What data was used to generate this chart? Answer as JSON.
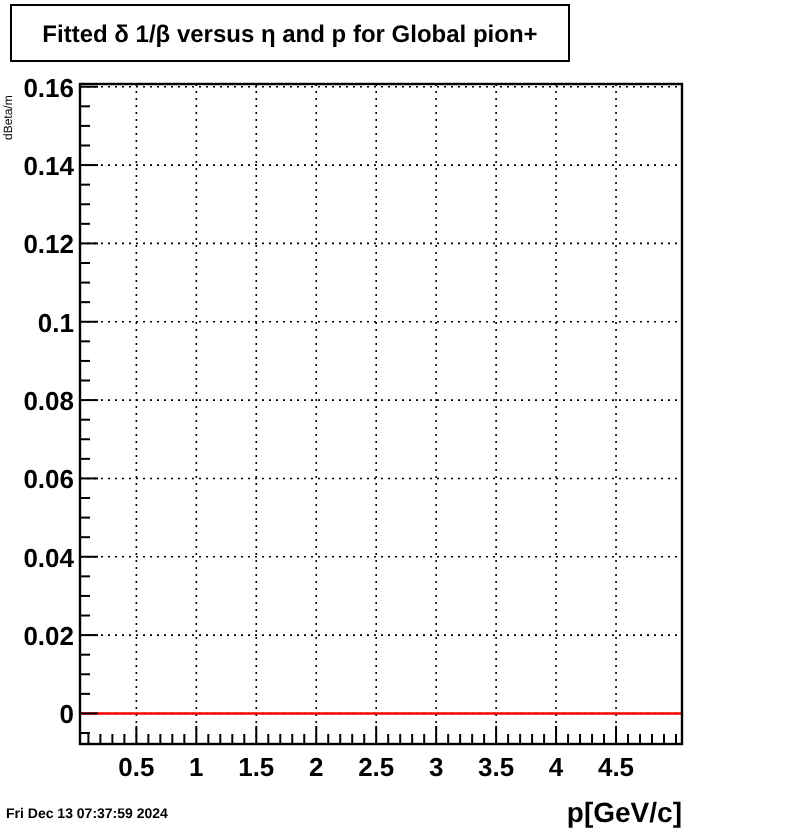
{
  "chart_data": {
    "type": "line",
    "title": "Fitted δ 1/β versus η  and p for Global pion+",
    "xlabel": "p[GeV/c]",
    "ylabel": "dBeta/m",
    "annotations": [
      "Fri Dec 13 07:37:59 2024"
    ],
    "xlim": [
      0.03,
      5.05
    ],
    "ylim": [
      -0.0078,
      0.1607
    ],
    "xticks": [
      {
        "value": 0.1,
        "label": null
      },
      {
        "value": 0.2,
        "label": null
      },
      {
        "value": 0.3,
        "label": null
      },
      {
        "value": 0.4,
        "label": null
      },
      {
        "value": 0.5,
        "label": "0.5"
      },
      {
        "value": 0.6,
        "label": null
      },
      {
        "value": 0.7,
        "label": null
      },
      {
        "value": 0.8,
        "label": null
      },
      {
        "value": 0.9,
        "label": null
      },
      1,
      {
        "value": 1.1,
        "label": null
      },
      {
        "value": 1.2,
        "label": null
      },
      {
        "value": 1.3,
        "label": null
      },
      {
        "value": 1.4,
        "label": null
      },
      1.5,
      {
        "value": 1.6,
        "label": null
      },
      {
        "value": 1.7,
        "label": null
      },
      {
        "value": 1.8,
        "label": null
      },
      {
        "value": 1.9,
        "label": null
      },
      2,
      {
        "value": 2.1,
        "label": null
      },
      {
        "value": 2.2,
        "label": null
      },
      {
        "value": 2.3,
        "label": null
      },
      {
        "value": 2.4,
        "label": null
      },
      2.5,
      {
        "value": 2.6,
        "label": null
      },
      {
        "value": 2.7,
        "label": null
      },
      {
        "value": 2.8,
        "label": null
      },
      {
        "value": 2.9,
        "label": null
      },
      3,
      {
        "value": 3.1,
        "label": null
      },
      {
        "value": 3.2,
        "label": null
      },
      {
        "value": 3.3,
        "label": null
      },
      {
        "value": 3.4,
        "label": null
      },
      3.5,
      {
        "value": 3.6,
        "label": null
      },
      {
        "value": 3.7,
        "label": null
      },
      {
        "value": 3.8,
        "label": null
      },
      {
        "value": 3.9,
        "label": null
      },
      4,
      {
        "value": 4.1,
        "label": null
      },
      {
        "value": 4.2,
        "label": null
      },
      {
        "value": 4.3,
        "label": null
      },
      {
        "value": 4.4,
        "label": null
      },
      4.5,
      {
        "value": 4.6,
        "label": null
      },
      {
        "value": 4.7,
        "label": null
      },
      {
        "value": 4.8,
        "label": null
      },
      {
        "value": 4.9,
        "label": null
      },
      {
        "value": 5,
        "label": null
      }
    ],
    "yticks": [
      {
        "value": -0.005,
        "label": null
      },
      0,
      {
        "value": 0.005,
        "label": null
      },
      {
        "value": 0.01,
        "label": null
      },
      {
        "value": 0.015,
        "label": null
      },
      0.02,
      {
        "value": 0.025,
        "label": null
      },
      {
        "value": 0.03,
        "label": null
      },
      {
        "value": 0.035,
        "label": null
      },
      0.04,
      {
        "value": 0.045,
        "label": null
      },
      {
        "value": 0.05,
        "label": null
      },
      {
        "value": 0.055,
        "label": null
      },
      0.06,
      {
        "value": 0.065,
        "label": null
      },
      {
        "value": 0.07,
        "label": null
      },
      {
        "value": 0.075,
        "label": null
      },
      0.08,
      {
        "value": 0.085,
        "label": null
      },
      {
        "value": 0.09,
        "label": null
      },
      {
        "value": 0.095,
        "label": null
      },
      {
        "value": 0.1,
        "label": "0.1"
      },
      {
        "value": 0.105,
        "label": null
      },
      {
        "value": 0.11,
        "label": null
      },
      {
        "value": 0.115,
        "label": null
      },
      0.12,
      {
        "value": 0.125,
        "label": null
      },
      {
        "value": 0.13,
        "label": null
      },
      {
        "value": 0.135,
        "label": null
      },
      0.14,
      {
        "value": 0.145,
        "label": null
      },
      {
        "value": 0.15,
        "label": null
      },
      {
        "value": 0.155,
        "label": null
      },
      0.16
    ],
    "grid": true,
    "marker": "none",
    "line_style": "solid",
    "series": [
      {
        "color": "#ff0000",
        "x": [
          0.03,
          5.05
        ],
        "values": [
          0,
          0
        ]
      }
    ]
  }
}
